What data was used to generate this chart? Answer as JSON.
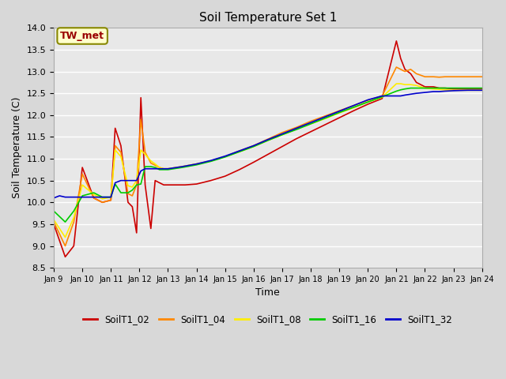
{
  "title": "Soil Temperature Set 1",
  "xlabel": "Time",
  "ylabel": "Soil Temperature (C)",
  "ylim": [
    8.5,
    14.0
  ],
  "fig_bg_color": "#d8d8d8",
  "plot_bg_color": "#e8e8e8",
  "annotation_label": "TW_met",
  "annotation_color": "#990000",
  "annotation_bg": "#ffffcc",
  "annotation_border": "#888800",
  "series": {
    "SoilT1_02": {
      "color": "#cc0000",
      "linewidth": 1.2,
      "data_x": [
        0,
        0.4,
        0.7,
        1.0,
        1.4,
        1.7,
        2.0,
        2.15,
        2.35,
        2.6,
        2.75,
        2.9,
        3.05,
        3.2,
        3.4,
        3.55,
        3.7,
        3.85,
        4.0,
        4.3,
        4.6,
        5.0,
        5.5,
        6.0,
        6.5,
        7.0,
        7.5,
        8.0,
        8.5,
        9.0,
        9.5,
        10.0,
        10.5,
        11.0,
        11.5,
        12.0,
        12.15,
        12.3,
        12.5,
        12.7,
        13.0,
        13.3,
        13.5,
        13.7,
        14.0,
        14.5,
        15.0
      ],
      "data_y": [
        9.5,
        8.75,
        9.0,
        10.8,
        10.1,
        10.0,
        10.05,
        11.7,
        11.3,
        10.0,
        9.9,
        9.3,
        12.4,
        10.4,
        9.4,
        10.5,
        10.45,
        10.4,
        10.4,
        10.4,
        10.4,
        10.42,
        10.5,
        10.6,
        10.75,
        10.92,
        11.1,
        11.28,
        11.46,
        11.62,
        11.78,
        11.94,
        12.1,
        12.25,
        12.38,
        13.7,
        13.3,
        13.05,
        12.95,
        12.75,
        12.65,
        12.65,
        12.62,
        12.62,
        12.6,
        12.6,
        12.6
      ]
    },
    "SoilT1_04": {
      "color": "#ff8800",
      "linewidth": 1.2,
      "data_x": [
        0,
        0.4,
        0.7,
        1.0,
        1.4,
        1.7,
        2.0,
        2.15,
        2.35,
        2.6,
        2.75,
        2.9,
        3.05,
        3.2,
        3.4,
        3.55,
        3.7,
        3.85,
        4.0,
        4.5,
        5.0,
        5.5,
        6.0,
        6.5,
        7.0,
        7.5,
        8.0,
        8.5,
        9.0,
        9.5,
        10.0,
        10.5,
        11.0,
        11.5,
        12.0,
        12.15,
        12.3,
        12.5,
        12.7,
        13.0,
        13.3,
        13.5,
        13.7,
        14.0,
        14.5,
        15.0
      ],
      "data_y": [
        9.55,
        9.0,
        9.55,
        10.65,
        10.1,
        10.0,
        10.05,
        11.3,
        11.15,
        10.2,
        10.15,
        10.4,
        11.9,
        11.15,
        10.9,
        10.85,
        10.8,
        10.77,
        10.77,
        10.82,
        10.88,
        10.95,
        11.05,
        11.18,
        11.3,
        11.45,
        11.6,
        11.72,
        11.86,
        11.98,
        12.1,
        12.22,
        12.34,
        12.44,
        13.1,
        13.05,
        13.0,
        13.05,
        12.95,
        12.88,
        12.88,
        12.87,
        12.88,
        12.88,
        12.88,
        12.88
      ]
    },
    "SoilT1_08": {
      "color": "#ffee00",
      "linewidth": 1.2,
      "data_x": [
        0,
        0.4,
        0.7,
        1.0,
        1.4,
        1.7,
        2.0,
        2.15,
        2.35,
        2.6,
        2.75,
        2.9,
        3.05,
        3.2,
        3.4,
        3.55,
        3.7,
        3.85,
        4.0,
        4.5,
        5.0,
        5.5,
        6.0,
        6.5,
        7.0,
        7.5,
        8.0,
        8.5,
        9.0,
        9.5,
        10.0,
        10.5,
        11.0,
        11.5,
        12.0,
        12.15,
        12.3,
        12.5,
        12.7,
        13.0,
        13.3,
        13.5,
        13.7,
        14.0,
        14.5,
        15.0
      ],
      "data_y": [
        9.6,
        9.2,
        9.65,
        10.4,
        10.18,
        10.08,
        10.12,
        11.2,
        11.05,
        10.38,
        10.35,
        10.5,
        11.2,
        11.1,
        10.95,
        10.88,
        10.8,
        10.77,
        10.77,
        10.82,
        10.88,
        10.95,
        11.05,
        11.16,
        11.28,
        11.42,
        11.55,
        11.68,
        11.8,
        11.92,
        12.05,
        12.17,
        12.3,
        12.41,
        12.72,
        12.72,
        12.7,
        12.7,
        12.68,
        12.62,
        12.6,
        12.59,
        12.58,
        12.57,
        12.57,
        12.57
      ]
    },
    "SoilT1_16": {
      "color": "#00cc00",
      "linewidth": 1.2,
      "data_x": [
        0,
        0.4,
        0.7,
        1.0,
        1.4,
        1.7,
        2.0,
        2.15,
        2.35,
        2.6,
        2.75,
        2.9,
        3.05,
        3.2,
        3.4,
        3.55,
        3.7,
        3.85,
        4.0,
        4.5,
        5.0,
        5.5,
        6.0,
        6.5,
        7.0,
        7.5,
        8.0,
        8.5,
        9.0,
        9.5,
        10.0,
        10.5,
        11.0,
        11.5,
        12.0,
        12.15,
        12.3,
        12.5,
        12.7,
        13.0,
        13.3,
        13.5,
        13.7,
        14.0,
        14.5,
        15.0
      ],
      "data_y": [
        9.8,
        9.55,
        9.8,
        10.15,
        10.22,
        10.12,
        10.12,
        10.42,
        10.22,
        10.22,
        10.28,
        10.4,
        10.42,
        10.82,
        10.82,
        10.8,
        10.75,
        10.75,
        10.75,
        10.8,
        10.86,
        10.94,
        11.04,
        11.16,
        11.28,
        11.42,
        11.55,
        11.67,
        11.8,
        11.93,
        12.06,
        12.18,
        12.3,
        12.42,
        12.55,
        12.58,
        12.6,
        12.62,
        12.62,
        12.62,
        12.62,
        12.62,
        12.62,
        12.62,
        12.62,
        12.62
      ]
    },
    "SoilT1_32": {
      "color": "#0000cc",
      "linewidth": 1.2,
      "data_x": [
        0,
        0.2,
        0.4,
        0.7,
        1.0,
        1.4,
        1.7,
        2.0,
        2.15,
        2.35,
        2.6,
        2.75,
        2.9,
        3.05,
        3.2,
        3.4,
        3.55,
        3.7,
        3.85,
        4.0,
        4.5,
        5.0,
        5.5,
        6.0,
        6.5,
        7.0,
        7.5,
        8.0,
        8.5,
        9.0,
        9.5,
        10.0,
        10.5,
        11.0,
        11.5,
        12.0,
        12.15,
        12.3,
        12.5,
        12.7,
        13.0,
        13.3,
        13.5,
        13.7,
        14.0,
        14.5,
        15.0
      ],
      "data_y": [
        10.1,
        10.15,
        10.12,
        10.12,
        10.12,
        10.12,
        10.12,
        10.12,
        10.45,
        10.5,
        10.5,
        10.5,
        10.5,
        10.72,
        10.77,
        10.77,
        10.77,
        10.77,
        10.77,
        10.77,
        10.82,
        10.88,
        10.96,
        11.06,
        11.18,
        11.3,
        11.44,
        11.57,
        11.7,
        11.83,
        11.96,
        12.09,
        12.22,
        12.35,
        12.44,
        12.44,
        12.44,
        12.46,
        12.48,
        12.5,
        12.52,
        12.54,
        12.54,
        12.55,
        12.56,
        12.57,
        12.57
      ]
    }
  },
  "x_tick_labels": [
    "Jan 9",
    "Jan 10",
    "Jan 11",
    "Jan 12",
    "Jan 13",
    "Jan 14",
    "Jan 15",
    "Jan 16",
    "Jan 17",
    "Jan 18",
    "Jan 19",
    "Jan 20",
    "Jan 21",
    "Jan 22",
    "Jan 23",
    "Jan 24"
  ],
  "x_tick_positions": [
    0,
    1,
    2,
    3,
    4,
    5,
    6,
    7,
    8,
    9,
    10,
    11,
    12,
    13,
    14,
    15
  ],
  "yticks": [
    8.5,
    9.0,
    9.5,
    10.0,
    10.5,
    11.0,
    11.5,
    12.0,
    12.5,
    13.0,
    13.5,
    14.0
  ],
  "legend_order": [
    "SoilT1_02",
    "SoilT1_04",
    "SoilT1_08",
    "SoilT1_16",
    "SoilT1_32"
  ]
}
